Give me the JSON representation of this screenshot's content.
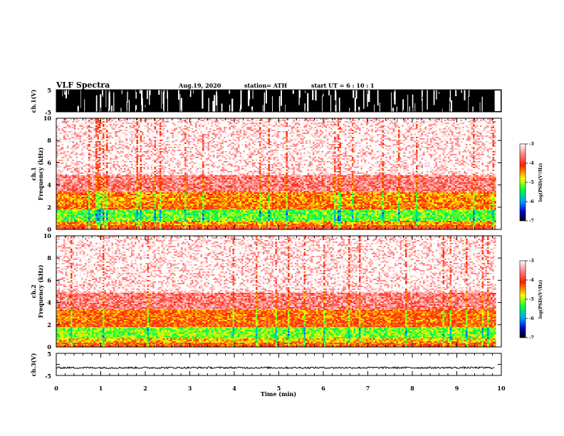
{
  "header": {
    "title": "VLF Spectra",
    "date": "Aug.19, 2020",
    "station": "station= ATH",
    "start": "start  UT =   6  : 10 : 1"
  },
  "chart_data": [
    {
      "type": "line",
      "id": "ch1-waveform",
      "ylabel": "ch.1(V)",
      "ylim": [
        -5,
        5
      ],
      "yticks": [
        "5",
        "-5"
      ],
      "xlim": [
        0,
        10
      ],
      "description_values": "dense saturated waveform filling -5 to 5 V with sparse gaps"
    },
    {
      "type": "heatmap",
      "id": "ch1-spectrogram",
      "ylabel": [
        "ch.1",
        "Frequency  (kHz)"
      ],
      "ylim": [
        0,
        10
      ],
      "yticks": [
        "0",
        "2",
        "4",
        "6",
        "8",
        "10"
      ],
      "xlim": [
        0,
        10
      ],
      "data_xmax": 9.85,
      "bands_khz": [
        {
          "from": 0.0,
          "to": 0.4,
          "level": -4.0
        },
        {
          "from": 0.4,
          "to": 0.8,
          "level": -4.5
        },
        {
          "from": 0.8,
          "to": 1.8,
          "level": -5.2
        },
        {
          "from": 1.8,
          "to": 2.3,
          "level": -4.3
        },
        {
          "from": 2.3,
          "to": 3.4,
          "level": -4.4
        },
        {
          "from": 3.4,
          "to": 5.0,
          "level": -3.6
        },
        {
          "from": 5.0,
          "to": 10.0,
          "level": -3.2
        }
      ],
      "colorbar": {
        "label": "log(PSD)(V²/Hz)",
        "range": [
          -7,
          -3
        ],
        "ticks": [
          "-3",
          "-4",
          "-5",
          "-6",
          "-7"
        ]
      }
    },
    {
      "type": "heatmap",
      "id": "ch2-spectrogram",
      "ylabel": [
        "ch.2",
        "Frequency  (kHz)"
      ],
      "ylim": [
        0,
        10
      ],
      "yticks": [
        "0",
        "2",
        "4",
        "6",
        "8",
        "10"
      ],
      "xlim": [
        0,
        10
      ],
      "data_xmax": 9.85,
      "bands_khz": [
        {
          "from": 0.0,
          "to": 0.4,
          "level": -4.2
        },
        {
          "from": 0.4,
          "to": 0.8,
          "level": -4.6
        },
        {
          "from": 0.8,
          "to": 1.8,
          "level": -5.1
        },
        {
          "from": 1.8,
          "to": 2.3,
          "level": -4.2
        },
        {
          "from": 2.3,
          "to": 3.4,
          "level": -4.3
        },
        {
          "from": 3.4,
          "to": 5.0,
          "level": -3.6
        },
        {
          "from": 5.0,
          "to": 10.0,
          "level": -3.2
        }
      ],
      "colorbar": {
        "label": "log(PSD)(V²/Hz)",
        "range": [
          -7,
          -3
        ],
        "ticks": [
          "-3",
          "-4",
          "-5",
          "-6",
          "-7"
        ]
      }
    },
    {
      "type": "line",
      "id": "ch3-waveform",
      "ylabel": "ch.3(V)",
      "ylim": [
        -5,
        5
      ],
      "yticks": [
        "5",
        "-5"
      ],
      "xlim": [
        0,
        10
      ],
      "baseline_v": -1.5,
      "amplitude_v": 0.4,
      "data_xmax": 9.85
    }
  ],
  "xaxis": {
    "label": "Time  (min)",
    "ticks": [
      "0",
      "1",
      "2",
      "3",
      "4",
      "5",
      "6",
      "7",
      "8",
      "9",
      "10"
    ],
    "range": [
      0,
      10
    ]
  }
}
